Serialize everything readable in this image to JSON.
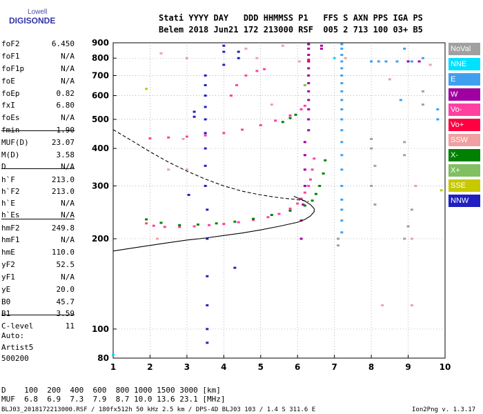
{
  "logo": {
    "line1": "Lowell",
    "line2": "DIGISONDE"
  },
  "header": {
    "line1": "Stati YYYY DAY   DDD HHMMSS P1   FFS S AXN PPS IGA PS",
    "line2": "Belem 2018 Jun21 172 213000 RSF  005 2 713 100 03+ B5"
  },
  "params": [
    {
      "name": "foF2",
      "value": "6.450"
    },
    {
      "name": "foF1",
      "value": "N/A"
    },
    {
      "name": "foF1p",
      "value": "N/A"
    },
    {
      "name": "foE",
      "value": "N/A"
    },
    {
      "name": "foEp",
      "value": "0.82"
    },
    {
      "name": "fxI",
      "value": "6.80"
    },
    {
      "name": "foEs",
      "value": "N/A"
    },
    {
      "name": "fmin",
      "value": "1.90"
    },
    {
      "name": "MUF(D)",
      "value": "23.07"
    },
    {
      "name": "M(D)",
      "value": "3.58"
    },
    {
      "name": "D",
      "value": "N/A"
    },
    {
      "name": "h`F",
      "value": "213.0"
    },
    {
      "name": "h`F2",
      "value": "213.0"
    },
    {
      "name": "h`E",
      "value": "N/A"
    },
    {
      "name": "h`Es",
      "value": "N/A"
    },
    {
      "name": "hmF2",
      "value": "249.8"
    },
    {
      "name": "hmF1",
      "value": "N/A"
    },
    {
      "name": "hmE",
      "value": "110.0"
    },
    {
      "name": "yF2",
      "value": "52.5"
    },
    {
      "name": "yF1",
      "value": "N/A"
    },
    {
      "name": "yE",
      "value": "20.0"
    },
    {
      "name": "B0",
      "value": "45.7"
    },
    {
      "name": "B1",
      "value": "3.59"
    },
    {
      "name": "C-level",
      "value": "11"
    }
  ],
  "auto": {
    "label": "Auto:",
    "software": "Artist5",
    "version": "500200"
  },
  "legend": [
    {
      "label": "NoVal",
      "color": "#a0a0a0"
    },
    {
      "label": "NNE",
      "color": "#00e0ff"
    },
    {
      "label": "E",
      "color": "#40a0f0"
    },
    {
      "label": "W",
      "color": "#a000a0"
    },
    {
      "label": "Vo-",
      "color": "#ff40a0"
    },
    {
      "label": "Vo+",
      "color": "#ff0040"
    },
    {
      "label": "SSW",
      "color": "#f0a0a0"
    },
    {
      "label": "X-",
      "color": "#008000"
    },
    {
      "label": "X+",
      "color": "#80c060"
    },
    {
      "label": "SSE",
      "color": "#c8c800"
    },
    {
      "label": "NNW",
      "color": "#2020c0"
    }
  ],
  "footer": {
    "d_line": "D    100  200  400  600  800 1000 1500 3000 [km]",
    "muf_line": "MUF  6.8  6.9  7.3  7.9  8.7 10.0 13.6 23.1 [MHz]",
    "file_line": "BLJ03_2018172213000.RSF / 180fx512h 50 kHz 2.5 km / DPS-4D BLJ03 103 / 1.4 S 311.6 E",
    "version": "Ion2Png v. 1.3.17"
  },
  "chart_data": {
    "type": "scatter",
    "xlabel": "",
    "ylabel": "",
    "xlim": [
      1,
      10
    ],
    "ylim": [
      80,
      900
    ],
    "y_scale": "log",
    "x_ticks": [
      1,
      2,
      3,
      4,
      5,
      6,
      7,
      8,
      9,
      10
    ],
    "y_ticks": [
      80,
      100,
      200,
      300,
      400,
      500,
      600,
      700,
      800,
      900
    ],
    "grid": "dotted",
    "series": [
      {
        "name": "Vo-",
        "color": "#ff40a0",
        "points": [
          [
            1.9,
            225
          ],
          [
            2.1,
            221
          ],
          [
            2.4,
            219
          ],
          [
            2.8,
            219
          ],
          [
            3.2,
            220
          ],
          [
            3.6,
            222
          ],
          [
            4.0,
            224
          ],
          [
            4.4,
            227
          ],
          [
            4.8,
            231
          ],
          [
            5.2,
            236
          ],
          [
            5.5,
            242
          ],
          [
            5.8,
            252
          ],
          [
            6.0,
            262
          ],
          [
            6.1,
            272
          ],
          [
            6.2,
            285
          ],
          [
            6.3,
            300
          ],
          [
            6.35,
            315
          ],
          [
            6.4,
            340
          ],
          [
            6.45,
            370
          ],
          [
            2.0,
            432
          ],
          [
            2.5,
            435
          ],
          [
            3.0,
            438
          ],
          [
            3.5,
            442
          ],
          [
            4.0,
            450
          ],
          [
            4.5,
            462
          ],
          [
            5.0,
            478
          ],
          [
            5.4,
            495
          ],
          [
            5.8,
            515
          ],
          [
            6.1,
            540
          ],
          [
            6.2,
            555
          ],
          [
            4.2,
            600
          ],
          [
            4.35,
            650
          ],
          [
            4.6,
            700
          ],
          [
            4.9,
            725
          ],
          [
            5.1,
            735
          ]
        ]
      },
      {
        "name": "X-",
        "color": "#008000",
        "points": [
          [
            1.9,
            232
          ],
          [
            2.3,
            226
          ],
          [
            2.8,
            222
          ],
          [
            3.3,
            223
          ],
          [
            3.8,
            225
          ],
          [
            4.3,
            228
          ],
          [
            4.8,
            233
          ],
          [
            5.3,
            240
          ],
          [
            5.8,
            248
          ],
          [
            6.2,
            258
          ],
          [
            6.4,
            268
          ],
          [
            6.5,
            282
          ],
          [
            6.6,
            300
          ],
          [
            6.7,
            330
          ],
          [
            6.75,
            365
          ],
          [
            5.6,
            490
          ],
          [
            5.8,
            505
          ],
          [
            5.95,
            518
          ]
        ]
      },
      {
        "name": "NNW",
        "color": "#2020c0",
        "points": [
          [
            3.5,
            300
          ],
          [
            3.5,
            350
          ],
          [
            3.5,
            400
          ],
          [
            3.5,
            450
          ],
          [
            3.5,
            500
          ],
          [
            3.5,
            550
          ],
          [
            3.5,
            600
          ],
          [
            3.5,
            650
          ],
          [
            3.5,
            700
          ],
          [
            3.55,
            250
          ],
          [
            3.55,
            200
          ],
          [
            3.55,
            150
          ],
          [
            3.55,
            120
          ],
          [
            3.55,
            100
          ],
          [
            3.55,
            90
          ],
          [
            3.2,
            510
          ],
          [
            3.2,
            530
          ],
          [
            3.05,
            280
          ],
          [
            4.0,
            880
          ],
          [
            4.0,
            840
          ],
          [
            4.0,
            760
          ],
          [
            4.4,
            840
          ],
          [
            4.4,
            800
          ],
          [
            4.3,
            160
          ]
        ]
      },
      {
        "name": "W",
        "color": "#a000a0",
        "points": [
          [
            6.3,
            890
          ],
          [
            6.3,
            860
          ],
          [
            6.3,
            820
          ],
          [
            6.3,
            780
          ],
          [
            6.3,
            740
          ],
          [
            6.3,
            700
          ],
          [
            6.3,
            660
          ],
          [
            6.3,
            620
          ],
          [
            6.3,
            580
          ],
          [
            6.3,
            540
          ],
          [
            6.3,
            500
          ],
          [
            6.3,
            460
          ],
          [
            6.2,
            420
          ],
          [
            6.2,
            380
          ],
          [
            6.2,
            340
          ],
          [
            6.2,
            300
          ],
          [
            6.15,
            260
          ],
          [
            6.1,
            230
          ],
          [
            6.1,
            200
          ],
          [
            6.65,
            880
          ],
          [
            6.65,
            860
          ],
          [
            8.7,
            780
          ],
          [
            9.0,
            780
          ],
          [
            9.3,
            780
          ]
        ]
      },
      {
        "name": "E",
        "color": "#40a0f0",
        "points": [
          [
            7.2,
            890
          ],
          [
            7.2,
            860
          ],
          [
            7.2,
            820
          ],
          [
            7.2,
            780
          ],
          [
            7.2,
            740
          ],
          [
            7.2,
            700
          ],
          [
            7.2,
            660
          ],
          [
            7.2,
            620
          ],
          [
            7.2,
            580
          ],
          [
            7.2,
            540
          ],
          [
            7.2,
            500
          ],
          [
            7.2,
            460
          ],
          [
            7.2,
            420
          ],
          [
            7.2,
            380
          ],
          [
            7.2,
            340
          ],
          [
            7.2,
            300
          ],
          [
            7.2,
            270
          ],
          [
            7.2,
            250
          ],
          [
            7.2,
            230
          ],
          [
            7.2,
            210
          ],
          [
            8.0,
            780
          ],
          [
            8.2,
            780
          ],
          [
            8.4,
            780
          ],
          [
            8.7,
            780
          ],
          [
            9.1,
            780
          ],
          [
            9.4,
            800
          ],
          [
            9.8,
            500
          ],
          [
            9.8,
            540
          ],
          [
            8.9,
            860
          ],
          [
            8.8,
            580
          ]
        ]
      },
      {
        "name": "NoVal",
        "color": "#a0a0a0",
        "points": [
          [
            7.1,
            200
          ],
          [
            7.1,
            190
          ],
          [
            8.0,
            430
          ],
          [
            8.0,
            400
          ],
          [
            8.1,
            350
          ],
          [
            8.0,
            300
          ],
          [
            8.1,
            260
          ],
          [
            8.9,
            420
          ],
          [
            8.9,
            380
          ],
          [
            9.1,
            250
          ],
          [
            9.0,
            220
          ],
          [
            8.9,
            200
          ],
          [
            9.4,
            560
          ],
          [
            9.4,
            620
          ]
        ]
      },
      {
        "name": "SSW",
        "color": "#f0a0a0",
        "points": [
          [
            2.3,
            830
          ],
          [
            2.2,
            200
          ],
          [
            2.5,
            340
          ],
          [
            2.9,
            430
          ],
          [
            3.0,
            340
          ],
          [
            3.0,
            800
          ],
          [
            4.6,
            860
          ],
          [
            4.9,
            800
          ],
          [
            5.3,
            560
          ],
          [
            5.6,
            880
          ],
          [
            6.05,
            780
          ],
          [
            7.3,
            800
          ],
          [
            8.5,
            680
          ],
          [
            9.2,
            300
          ],
          [
            9.6,
            760
          ],
          [
            9.1,
            200
          ],
          [
            9.1,
            120
          ],
          [
            8.3,
            120
          ]
        ]
      },
      {
        "name": "NNE",
        "color": "#00e0ff",
        "points": [
          [
            1.0,
            82
          ],
          [
            7.0,
            800
          ]
        ]
      },
      {
        "name": "Vo+",
        "color": "#ff0040",
        "points": [
          [
            6.3,
            790
          ]
        ]
      },
      {
        "name": "X+",
        "color": "#80c060",
        "points": [
          [
            6.2,
            650
          ]
        ]
      },
      {
        "name": "SSE",
        "color": "#c8c800",
        "points": [
          [
            1.9,
            632
          ],
          [
            9.9,
            290
          ]
        ]
      }
    ],
    "lines": [
      {
        "name": "profile",
        "style": "solid",
        "points": [
          [
            1,
            182
          ],
          [
            1.5,
            186
          ],
          [
            2,
            190
          ],
          [
            2.5,
            194
          ],
          [
            3,
            198
          ],
          [
            3.5,
            201
          ],
          [
            4,
            205
          ],
          [
            4.5,
            209
          ],
          [
            5,
            214
          ],
          [
            5.5,
            220
          ],
          [
            6,
            227
          ],
          [
            6.2,
            232
          ],
          [
            6.35,
            238
          ],
          [
            6.45,
            246
          ],
          [
            6.45,
            252
          ],
          [
            6.35,
            260
          ],
          [
            6.2,
            267
          ],
          [
            6.05,
            272
          ],
          [
            5.9,
            277
          ]
        ]
      },
      {
        "name": "dashed",
        "style": "dashed",
        "points": [
          [
            1,
            462
          ],
          [
            1.5,
            425
          ],
          [
            2,
            390
          ],
          [
            2.5,
            360
          ],
          [
            3,
            336
          ],
          [
            3.5,
            316
          ],
          [
            4,
            300
          ],
          [
            4.5,
            288
          ],
          [
            5,
            280
          ],
          [
            5.5,
            274
          ],
          [
            6,
            270
          ],
          [
            6.3,
            266
          ]
        ]
      }
    ]
  }
}
